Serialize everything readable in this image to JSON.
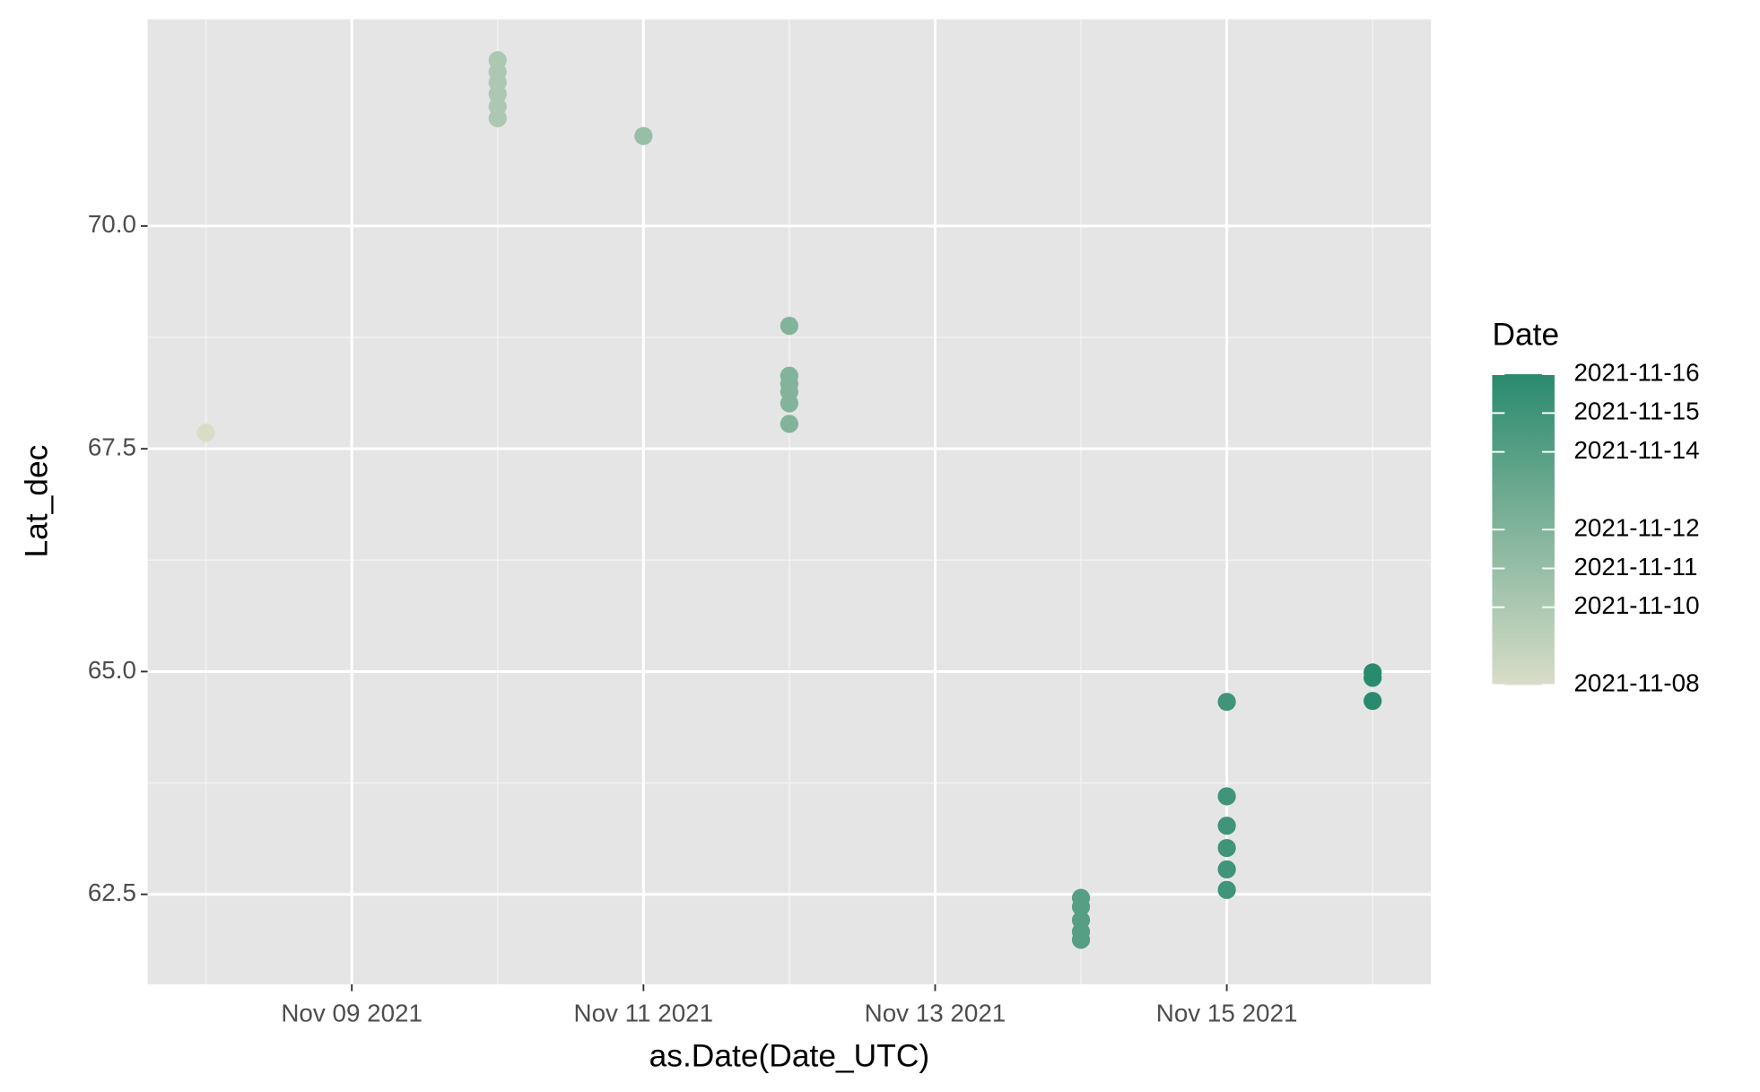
{
  "chart_data": {
    "type": "scatter",
    "x_label": "as.Date(Date_UTC)",
    "y_label": "Lat_dec",
    "x": [
      "2021-11-08",
      "2021-11-10",
      "2021-11-10",
      "2021-11-10",
      "2021-11-10",
      "2021-11-10",
      "2021-11-10",
      "2021-11-11",
      "2021-11-12",
      "2021-11-12",
      "2021-11-12",
      "2021-11-12",
      "2021-11-12",
      "2021-11-12",
      "2021-11-14",
      "2021-11-14",
      "2021-11-14",
      "2021-11-14",
      "2021-11-14",
      "2021-11-15",
      "2021-11-15",
      "2021-11-15",
      "2021-11-15",
      "2021-11-15",
      "2021-11-15",
      "2021-11-16",
      "2021-11-16",
      "2021-11-16"
    ],
    "values": [
      67.68,
      71.86,
      71.73,
      71.61,
      71.48,
      71.34,
      71.21,
      71.01,
      68.88,
      68.32,
      68.23,
      68.14,
      68.01,
      67.78,
      62.46,
      62.36,
      62.21,
      62.08,
      61.99,
      64.66,
      63.6,
      63.27,
      63.02,
      62.78,
      62.55,
      64.99,
      64.93,
      64.67
    ],
    "xlim": [
      "2021-11-07T14:24Z",
      "2021-11-16T09:36Z"
    ],
    "xticks": [
      {
        "value": "2021-11-09",
        "label": "Nov 09 2021"
      },
      {
        "value": "2021-11-11",
        "label": "Nov 11 2021"
      },
      {
        "value": "2021-11-13",
        "label": "Nov 13 2021"
      },
      {
        "value": "2021-11-15",
        "label": "Nov 15 2021"
      }
    ],
    "xminor": [
      "2021-11-08",
      "2021-11-10",
      "2021-11-12",
      "2021-11-14",
      "2021-11-16"
    ],
    "ylim": [
      61.49,
      72.32
    ],
    "yticks": [
      {
        "value": 62.5,
        "label": "62.5"
      },
      {
        "value": 65,
        "label": "65.0"
      },
      {
        "value": 67.5,
        "label": "67.5"
      },
      {
        "value": 70,
        "label": "70.0"
      }
    ],
    "grid": true,
    "color_scale": {
      "low": "#d8ddc8",
      "high": "#2a8a6e"
    },
    "legend": {
      "title": "Date",
      "limits": [
        "2021-11-08",
        "2021-11-16"
      ],
      "ticks": [
        "2021-11-16",
        "2021-11-15",
        "2021-11-14",
        "2021-11-12",
        "2021-11-11",
        "2021-11-10",
        "2021-11-08"
      ]
    }
  }
}
